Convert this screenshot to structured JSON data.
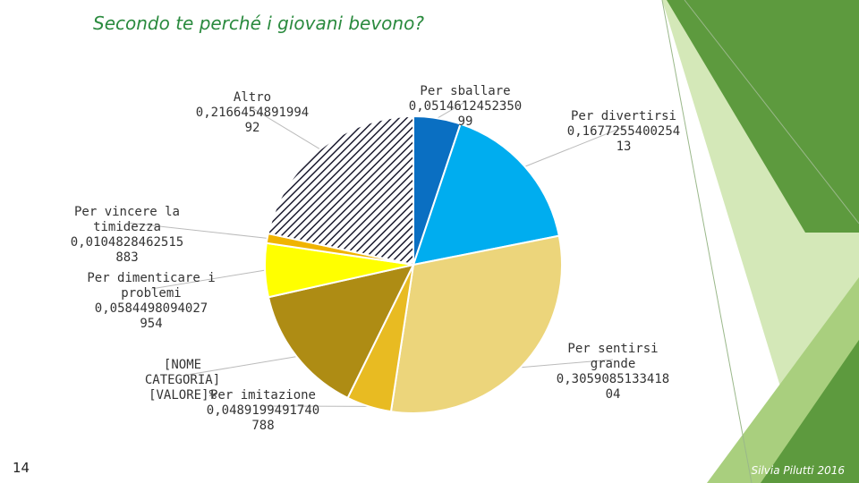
{
  "title": "Secondo te perché i giovani bevono?",
  "slide_number": "14",
  "footer": "Silvia Pilutti 2016",
  "colors": {
    "title": "#2a8a3e",
    "deco_light": "#d4e8b8",
    "deco_mid": "#a9cf7e",
    "deco_dark": "#5d9a3e"
  },
  "chart_data": {
    "type": "pie",
    "start_angle_deg": 0,
    "direction": "clockwise",
    "slices": [
      {
        "category": "Per sballare",
        "value": 0.051461245235,
        "label": "Per sballare\n0,0514612452350\n99",
        "color": "#0a6fc2",
        "pattern": "solid"
      },
      {
        "category": "Per divertirsi",
        "value": 0.1677255400254,
        "label": "Per divertirsi\n0,1677255400254\n13",
        "color": "#00adef",
        "pattern": "solid"
      },
      {
        "category": "Per sentirsi grande",
        "value": 0.3059085133418,
        "label": "Per sentirsi grande\n0,3059085133418\n04",
        "color": "#ecd57b",
        "pattern": "solid"
      },
      {
        "category": "Per imitazione",
        "value": 0.048919949174,
        "label": "Per imitazione\n0,0489199491740\n788",
        "color": "#e8bb22",
        "pattern": "solid"
      },
      {
        "category": "[NOME CATEGORIA]",
        "value": 0.1423,
        "label": "[NOME\nCATEGORIA]\n[VALORE]%",
        "color": "#ae8c14",
        "pattern": "solid"
      },
      {
        "category": "Per dimenticare i problemi",
        "value": 0.0584498094027,
        "label": "Per dimenticare i\nproblemi\n0,0584498094027\n954",
        "color": "#ffff00",
        "pattern": "solid"
      },
      {
        "category": "Per vincere la timidezza",
        "value": 0.0104828462515,
        "label": "Per vincere la\ntimidezza\n0,0104828462515\n883",
        "color": "#f0b400",
        "pattern": "solid"
      },
      {
        "category": "Altro",
        "value": 0.2166454891994,
        "label": "Altro\n0,2166454891994\n92",
        "color": "#ffffff",
        "pattern": "hatch"
      }
    ]
  }
}
